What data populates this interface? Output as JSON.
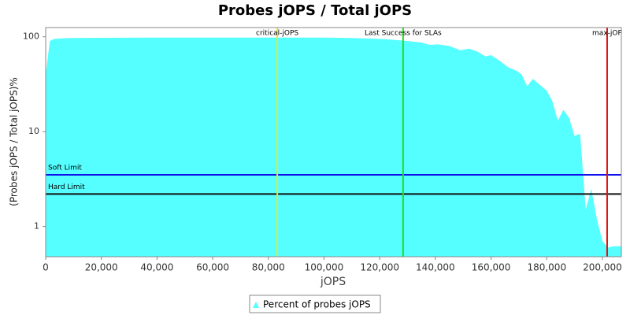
{
  "chart_data": {
    "type": "area",
    "title": "Probes jOPS / Total jOPS",
    "x_label": "jOPS",
    "y_label": "(Probes jOPS / Total jOPS)%",
    "log_y": true,
    "x": [
      0,
      1500,
      3000,
      6000,
      10000,
      20000,
      40000,
      60000,
      80000,
      100000,
      110000,
      120000,
      125000,
      130000,
      135000,
      138000,
      141000,
      145000,
      149000,
      152000,
      155000,
      158000,
      160000,
      163000,
      166000,
      169000,
      171000,
      173000,
      175000,
      177000,
      180000,
      182000,
      184000,
      186000,
      188000,
      190000,
      192000,
      194000,
      196000,
      198000,
      200000,
      202000,
      204000,
      206800
    ],
    "series": [
      {
        "name": "Percent of probes jOPS",
        "color": "#55ffff",
        "values": [
          40,
          90,
          95,
          96,
          97,
          97.5,
          98,
          98,
          98,
          98,
          97,
          95,
          93,
          90,
          87,
          82,
          83,
          80,
          72,
          75,
          70,
          62,
          64,
          56,
          48,
          44,
          40,
          30,
          36,
          32,
          27,
          21,
          13,
          17,
          14,
          9,
          9.5,
          1.5,
          2.5,
          1.2,
          0.7,
          0.6,
          0.62,
          0.62
        ]
      }
    ],
    "xlim": [
      0,
      206800
    ],
    "ylim": [
      0.48,
      125
    ],
    "xticks": [
      0,
      {
        "value": 20000,
        "label": "20,000"
      },
      {
        "value": 40000,
        "label": "40,000"
      },
      {
        "value": 60000,
        "label": "60,000"
      },
      {
        "value": 80000,
        "label": "80,000"
      },
      {
        "value": 100000,
        "label": "100,000"
      },
      {
        "value": 120000,
        "label": "120,000"
      },
      {
        "value": 140000,
        "label": "140,000"
      },
      {
        "value": 160000,
        "label": "160,000"
      },
      {
        "value": 180000,
        "label": "180,000"
      },
      {
        "value": 200000,
        "label": "200,000"
      }
    ],
    "yticks": [
      1,
      10,
      100
    ],
    "vertical_lines": [
      {
        "label": "critical-jOPS",
        "value": 83200,
        "color": "#e5e53a"
      },
      {
        "label": "Last Success for SLAs",
        "value": 128400,
        "color": "#22dd22"
      },
      {
        "label": "max-jOP",
        "value": 201700,
        "color": "#dd1111"
      }
    ],
    "horizontal_lines": [
      {
        "label": "Soft Limit",
        "value": 3.5,
        "color": "#1111ee"
      },
      {
        "label": "Hard Limit",
        "value": 2.2,
        "color": "#111111"
      }
    ]
  }
}
